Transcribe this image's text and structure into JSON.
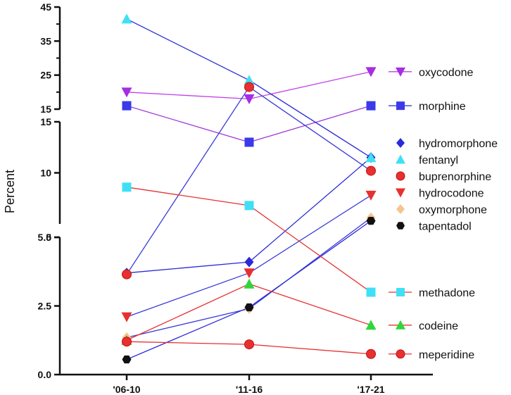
{
  "chart_data": {
    "type": "line",
    "ylabel": "Percent",
    "xlabel": "",
    "categories": [
      "'06-10",
      "'11-16",
      "'17-21"
    ],
    "y_segments": [
      {
        "range": [
          0,
          5
        ],
        "ticks": [
          "0.0",
          "2.5",
          "5.0"
        ],
        "tick_values": [
          0,
          2.5,
          5
        ]
      },
      {
        "range": [
          5,
          15
        ],
        "ticks": [
          "5",
          "10",
          "15"
        ],
        "tick_values": [
          5,
          10,
          15
        ]
      },
      {
        "range": [
          15,
          45
        ],
        "ticks": [
          "15",
          "25",
          "35",
          "45"
        ],
        "tick_values": [
          15,
          25,
          35,
          45
        ]
      }
    ],
    "series": [
      {
        "name": "oxycodone",
        "values": [
          20,
          18,
          26
        ],
        "color": "#a62ee0",
        "line": "#c040e8",
        "marker": "triangle-down"
      },
      {
        "name": "morphine",
        "values": [
          16,
          13,
          16
        ],
        "color": "#3a3ae8",
        "line": "#a03ad8",
        "marker": "square"
      },
      {
        "name": "hydromorphone",
        "values": [
          3.7,
          4.1,
          11.5
        ],
        "color": "#2a2ad8",
        "line": "#2a2ad8",
        "marker": "diamond"
      },
      {
        "name": "fentanyl",
        "values": [
          41.5,
          23.5,
          11.5
        ],
        "color": "#3fe0f5",
        "line": "#2a2ad8",
        "marker": "triangle-up"
      },
      {
        "name": "buprenorphine",
        "values": [
          3.65,
          21.5,
          10.2
        ],
        "color": "#e83030",
        "line": "#3a3ad8",
        "marker": "circle"
      },
      {
        "name": "hydrocodone",
        "values": [
          2.1,
          3.7,
          7.8
        ],
        "color": "#e83030",
        "line": "#3a3ad8",
        "marker": "triangle-down"
      },
      {
        "name": "oxymorphone",
        "values": [
          1.35,
          2.4,
          5.6
        ],
        "color": "#f5c590",
        "line": "#3a3ad8",
        "marker": "diamond"
      },
      {
        "name": "tapentadol",
        "values": [
          0.55,
          2.45,
          5.3
        ],
        "color": "#111111",
        "line": "#2a2ad8",
        "marker": "hexagon"
      },
      {
        "name": "methadone",
        "values": [
          8.6,
          6.8,
          3.0
        ],
        "color": "#3fe0f5",
        "line": "#e83030",
        "marker": "square"
      },
      {
        "name": "codeine",
        "values": [
          1.25,
          3.3,
          1.8
        ],
        "color": "#2fd63a",
        "line": "#e83030",
        "marker": "triangle-up"
      },
      {
        "name": "meperidine",
        "values": [
          1.2,
          1.1,
          0.75
        ],
        "color": "#e83030",
        "line": "#e83030",
        "marker": "circle"
      }
    ],
    "legend": [
      {
        "label": "oxycodone",
        "series": "oxycodone",
        "placement": "beside-last-point"
      },
      {
        "label": "morphine",
        "series": "morphine",
        "placement": "beside-last-point"
      },
      {
        "label": "hydromorphone",
        "series": "hydromorphone",
        "placement": "stacked-right"
      },
      {
        "label": "fentanyl",
        "series": "fentanyl",
        "placement": "stacked-right"
      },
      {
        "label": "buprenorphine",
        "series": "buprenorphine",
        "placement": "stacked-right"
      },
      {
        "label": "hydrocodone",
        "series": "hydrocodone",
        "placement": "stacked-right"
      },
      {
        "label": "oxymorphone",
        "series": "oxymorphone",
        "placement": "stacked-right"
      },
      {
        "label": "tapentadol",
        "series": "tapentadol",
        "placement": "stacked-right"
      },
      {
        "label": "methadone",
        "series": "methadone",
        "placement": "beside-last-point"
      },
      {
        "label": "codeine",
        "series": "codeine",
        "placement": "beside-last-point"
      },
      {
        "label": "meperidine",
        "series": "meperidine",
        "placement": "beside-last-point"
      }
    ]
  }
}
